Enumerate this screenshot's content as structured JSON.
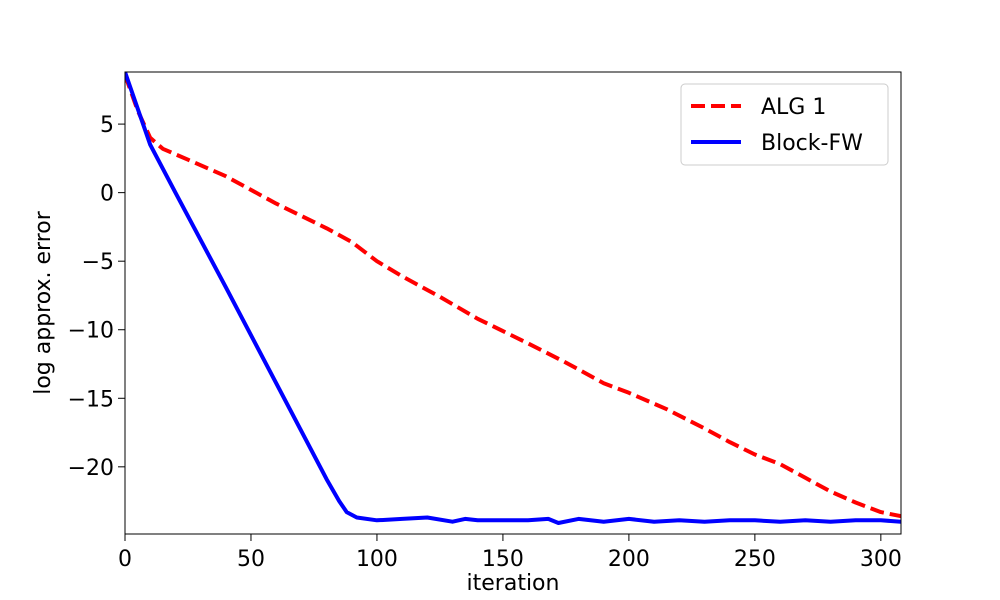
{
  "chart_data": {
    "type": "line",
    "title": "",
    "xlabel": "iteration",
    "ylabel": "log approx. error",
    "xlim": [
      0,
      308
    ],
    "ylim": [
      -24.9,
      8.8
    ],
    "xticks": [
      0,
      50,
      100,
      150,
      200,
      250,
      300
    ],
    "yticks": [
      5,
      0,
      -5,
      -10,
      -15,
      -20
    ],
    "ytick_labels": [
      "5",
      "0",
      "−5",
      "−10",
      "−15",
      "−20"
    ],
    "grid": false,
    "legend_position": "top-right",
    "series": [
      {
        "name": "ALG 1",
        "color": "#ff0000",
        "style": "dashed",
        "x": [
          0,
          5,
          10,
          15,
          25,
          40,
          60,
          80,
          90,
          100,
          110,
          125,
          140,
          150,
          160,
          175,
          190,
          200,
          215,
          230,
          240,
          250,
          260,
          270,
          280,
          290,
          300,
          308
        ],
        "y": [
          8.6,
          6.0,
          4.0,
          3.2,
          2.4,
          1.2,
          -0.8,
          -2.6,
          -3.6,
          -5.0,
          -6.1,
          -7.6,
          -9.2,
          -10.1,
          -11.0,
          -12.4,
          -13.9,
          -14.6,
          -15.8,
          -17.2,
          -18.2,
          -19.1,
          -19.8,
          -20.8,
          -21.8,
          -22.6,
          -23.3,
          -23.6
        ]
      },
      {
        "name": "Block-FW",
        "color": "#0000ff",
        "style": "solid",
        "x": [
          0,
          10,
          20,
          40,
          60,
          80,
          85,
          88,
          92,
          100,
          110,
          120,
          130,
          135,
          140,
          150,
          160,
          168,
          172,
          180,
          190,
          200,
          210,
          220,
          230,
          240,
          250,
          260,
          270,
          280,
          290,
          300,
          308
        ],
        "y": [
          8.8,
          3.5,
          0.0,
          -6.9,
          -13.9,
          -20.9,
          -22.5,
          -23.3,
          -23.7,
          -23.9,
          -23.8,
          -23.7,
          -24.0,
          -23.8,
          -23.9,
          -23.9,
          -23.9,
          -23.8,
          -24.1,
          -23.8,
          -24.0,
          -23.8,
          -24.0,
          -23.9,
          -24.0,
          -23.9,
          -23.9,
          -24.0,
          -23.9,
          -24.0,
          -23.9,
          -23.9,
          -24.0
        ]
      }
    ]
  }
}
